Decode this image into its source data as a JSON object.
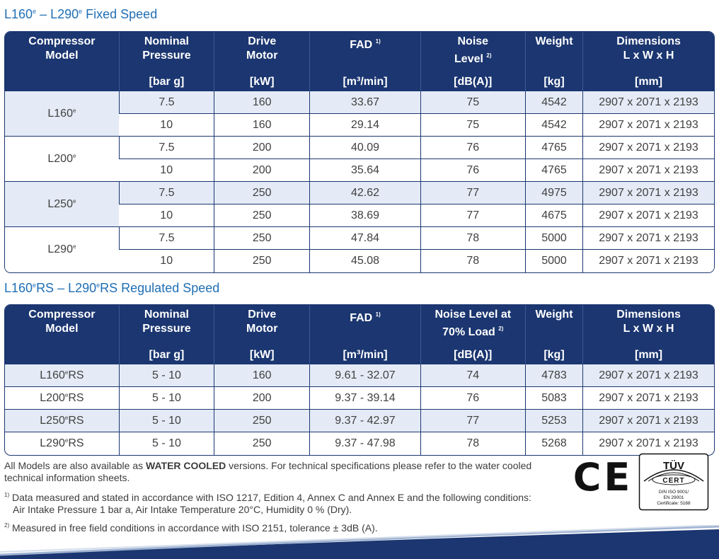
{
  "section1": {
    "title_a": "L160",
    "title_sup_a": "e",
    "title_b": " – L290",
    "title_sup_b": "e",
    "title_c": " Fixed Speed"
  },
  "section2": {
    "title_a": "L160",
    "title_sup_a": "e",
    "title_b": "RS – L290",
    "title_sup_b": "e",
    "title_c": "RS Regulated Speed"
  },
  "headers": {
    "model_1": "Compressor",
    "model_2": "Model",
    "pressure_1": "Nominal",
    "pressure_2": "Pressure",
    "pressure_unit": "[bar g]",
    "motor_1": "Drive",
    "motor_2": "Motor",
    "motor_unit": "[kW]",
    "fad": "FAD",
    "fad_note": "1)",
    "fad_unit": "[m³/min]",
    "noise_fixed_1": "Noise",
    "noise_fixed_2": "Level",
    "noise_rs_1": "Noise Level at",
    "noise_rs_2": "70% Load",
    "noise_note": "2)",
    "noise_unit": "[dB(A)]",
    "weight": "Weight",
    "weight_unit": "[kg]",
    "dims_1": "Dimensions",
    "dims_2": "L x W x H",
    "dims_unit": "[mm]"
  },
  "fixed_models": [
    {
      "name": "L160",
      "sup": "e",
      "rows": [
        {
          "pressure": "7.5",
          "motor": "160",
          "fad": "33.67",
          "noise": "75",
          "weight": "4542",
          "dims": "2907 x 2071 x 2193"
        },
        {
          "pressure": "10",
          "motor": "160",
          "fad": "29.14",
          "noise": "75",
          "weight": "4542",
          "dims": "2907 x 2071 x 2193"
        }
      ]
    },
    {
      "name": "L200",
      "sup": "e",
      "rows": [
        {
          "pressure": "7.5",
          "motor": "200",
          "fad": "40.09",
          "noise": "76",
          "weight": "4765",
          "dims": "2907 x 2071 x 2193"
        },
        {
          "pressure": "10",
          "motor": "200",
          "fad": "35.64",
          "noise": "76",
          "weight": "4765",
          "dims": "2907 x 2071 x 2193"
        }
      ]
    },
    {
      "name": "L250",
      "sup": "e",
      "rows": [
        {
          "pressure": "7.5",
          "motor": "250",
          "fad": "42.62",
          "noise": "77",
          "weight": "4975",
          "dims": "2907 x 2071 x 2193"
        },
        {
          "pressure": "10",
          "motor": "250",
          "fad": "38.69",
          "noise": "77",
          "weight": "4675",
          "dims": "2907 x 2071 x 2193"
        }
      ]
    },
    {
      "name": "L290",
      "sup": "e",
      "rows": [
        {
          "pressure": "7.5",
          "motor": "250",
          "fad": "47.84",
          "noise": "78",
          "weight": "5000",
          "dims": "2907 x 2071 x 2193"
        },
        {
          "pressure": "10",
          "motor": "250",
          "fad": "45.08",
          "noise": "78",
          "weight": "5000",
          "dims": "2907 x 2071 x 2193"
        }
      ]
    }
  ],
  "rs_models": [
    {
      "name_a": "L160",
      "sup": "e",
      "name_b": "RS",
      "pressure": "5 - 10",
      "motor": "160",
      "fad": "9.61 - 32.07",
      "noise": "74",
      "weight": "4783",
      "dims": "2907 x 2071 x 2193"
    },
    {
      "name_a": "L200",
      "sup": "e",
      "name_b": "RS",
      "pressure": "5 - 10",
      "motor": "200",
      "fad": "9.37 - 39.14",
      "noise": "76",
      "weight": "5083",
      "dims": "2907 x 2071 x 2193"
    },
    {
      "name_a": "L250",
      "sup": "e",
      "name_b": "RS",
      "pressure": "5 - 10",
      "motor": "250",
      "fad": "9.37 - 42.97",
      "noise": "77",
      "weight": "5253",
      "dims": "2907 x 2071 x 2193"
    },
    {
      "name_a": "L290",
      "sup": "e",
      "name_b": "RS",
      "pressure": "5 - 10",
      "motor": "250",
      "fad": "9.37 - 47.98",
      "noise": "78",
      "weight": "5268",
      "dims": "2907 x 2071 x 2193"
    }
  ],
  "footer": {
    "water_a": "All Models are also available as ",
    "water_bold": "WATER COOLED",
    "water_b": " versions. For technical specifications please refer to the water cooled technical information sheets.",
    "note1_mark": "1)",
    "note1_a": " Data measured and stated in accordance with ISO 1217, Edition 4, Annex C and Annex E and the following conditions:",
    "note1_b": "Air Intake Pressure 1 bar a, Air Intake Temperature 20°C, Humidity 0 % (Dry).",
    "note2_mark": "2)",
    "note2": " Measured in free field conditions in accordance with ISO 2151, tolerance ± 3dB (A)."
  },
  "certs": {
    "ce": "CE",
    "tuv_top": "TÜV",
    "tuv_cert": "CERT",
    "tuv_line1": "DIN ISO 9001/",
    "tuv_line2": "EN 29001",
    "tuv_line3": "Certificate: 5168"
  },
  "colors": {
    "header_bg": "#1b3670",
    "title": "#1f6fb5",
    "shade": "#e4ebf6"
  }
}
